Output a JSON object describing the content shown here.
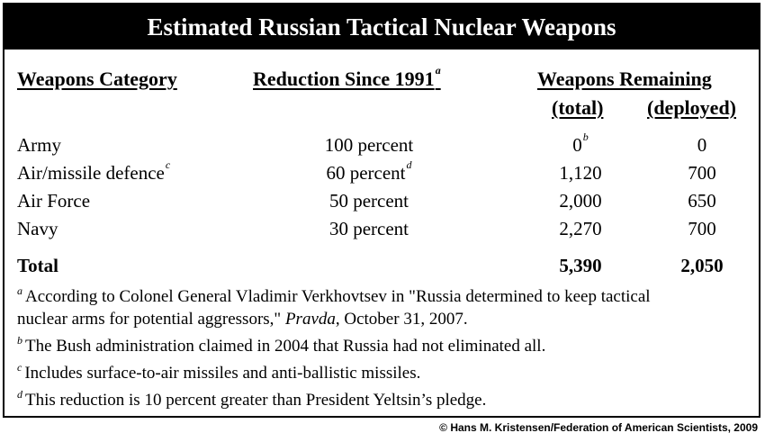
{
  "title": "Estimated Russian Tactical Nuclear Weapons",
  "headers": {
    "category": "Weapons Category",
    "reduction": "Reduction Since 1991",
    "reduction_note": "a",
    "remaining": "Weapons Remaining",
    "total_col": "(total)",
    "deployed_col": "(deployed)"
  },
  "rows": [
    {
      "category": "Army",
      "category_note": "",
      "reduction": "100 percent",
      "reduction_note": "",
      "total": "0",
      "total_note": "b",
      "deployed": "0"
    },
    {
      "category": "Air/missile defence",
      "category_note": "c",
      "reduction": "60 percent",
      "reduction_note": "d",
      "total": "1,120",
      "total_note": "",
      "deployed": "700"
    },
    {
      "category": "Air Force",
      "category_note": "",
      "reduction": "50 percent",
      "reduction_note": "",
      "total": "2,000",
      "total_note": "",
      "deployed": "650"
    },
    {
      "category": "Navy",
      "category_note": "",
      "reduction": "30 percent",
      "reduction_note": "",
      "total": "2,270",
      "total_note": "",
      "deployed": "700"
    }
  ],
  "totals": {
    "label": "Total",
    "total": "5,390",
    "deployed": "2,050"
  },
  "notes": [
    {
      "mark": "a",
      "line1_pre": "According to Colonel General Vladimir Verkhovtsev in \"Russia determined to keep tactical",
      "line2_pre": "nuclear arms for potential aggressors,\" ",
      "line2_italic": "Pravda",
      "line2_post": ", October 31, 2007."
    },
    {
      "mark": "b",
      "text": "The Bush administration claimed in 2004 that Russia had not eliminated all."
    },
    {
      "mark": "c",
      "text": "Includes surface-to-air missiles and anti-ballistic missiles."
    },
    {
      "mark": "d",
      "text": "This reduction is 10 percent greater than President Yeltsin’s pledge."
    }
  ],
  "credit": "© Hans M. Kristensen/Federation of American Scientists, 2009"
}
